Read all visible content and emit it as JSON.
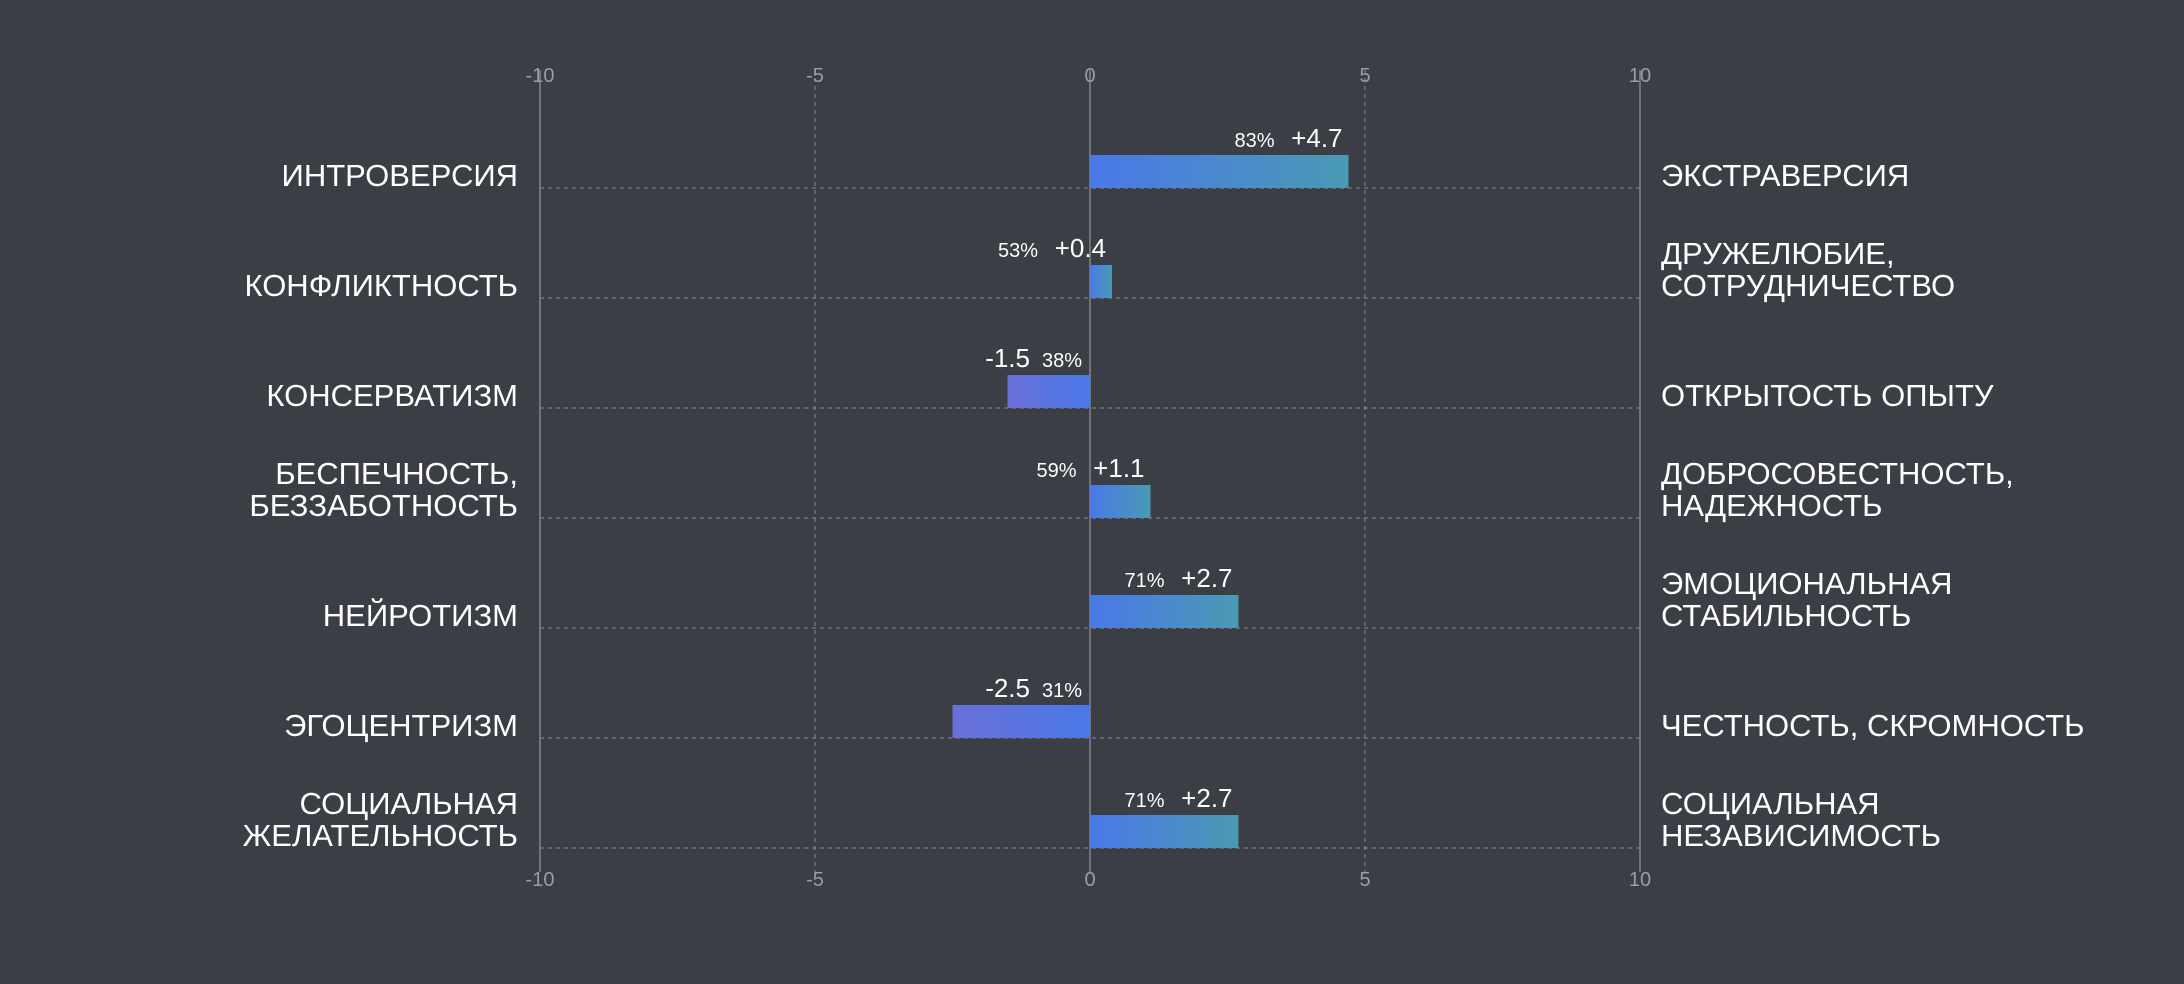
{
  "chart_data": {
    "type": "bar",
    "orientation": "horizontal-diverging",
    "xlim": [
      -10,
      10
    ],
    "ticks": [
      -10,
      -5,
      0,
      5,
      10
    ],
    "tick_labels": [
      "-10",
      "-5",
      "0",
      "5",
      "10"
    ],
    "grid": true,
    "colors": {
      "background": "#3b3e44",
      "bar_start": "#4a78e8",
      "bar_end": "#4a9ab4",
      "bar_neg_end": "#6a6fd8",
      "grid": "#8a8d93",
      "text": "#ffffff",
      "tick_text": "#9a9da3"
    },
    "categories": [
      {
        "left": [
          "ИНТРОВЕРСИЯ"
        ],
        "right": [
          "ЭКСТРАВЕРСИЯ"
        ],
        "value": 4.7,
        "value_label": "+4.7",
        "percent": "83%"
      },
      {
        "left": [
          "КОНФЛИКТНОСТЬ"
        ],
        "right": [
          "ДРУЖЕЛЮБИЕ,",
          "СОТРУДНИЧЕСТВО"
        ],
        "value": 0.4,
        "value_label": "+0.4",
        "percent": "53%"
      },
      {
        "left": [
          "КОНСЕРВАТИЗМ"
        ],
        "right": [
          "ОТКРЫТОСТЬ ОПЫТУ"
        ],
        "value": -1.5,
        "value_label": "-1.5",
        "percent": "38%"
      },
      {
        "left": [
          "БЕСПЕЧНОСТЬ,",
          "БЕЗЗАБОТНОСТЬ"
        ],
        "right": [
          "ДОБРОСОВЕСТНОСТЬ,",
          "НАДЕЖНОСТЬ"
        ],
        "value": 1.1,
        "value_label": "+1.1",
        "percent": "59%"
      },
      {
        "left": [
          "НЕЙРОТИЗМ"
        ],
        "right": [
          "ЭМОЦИОНАЛЬНАЯ",
          "СТАБИЛЬНОСТЬ"
        ],
        "value": 2.7,
        "value_label": "+2.7",
        "percent": "71%"
      },
      {
        "left": [
          "ЭГОЦЕНТРИЗМ"
        ],
        "right": [
          "ЧЕСТНОСТЬ, СКРОМНОСТЬ"
        ],
        "value": -2.5,
        "value_label": "-2.5",
        "percent": "31%"
      },
      {
        "left": [
          "СОЦИАЛЬНАЯ",
          "ЖЕЛАТЕЛЬНОСТЬ"
        ],
        "right": [
          "СОЦИАЛЬНАЯ",
          "НЕЗАВИСИМОСТЬ"
        ],
        "value": 2.7,
        "value_label": "+2.7",
        "percent": "71%"
      }
    ]
  }
}
